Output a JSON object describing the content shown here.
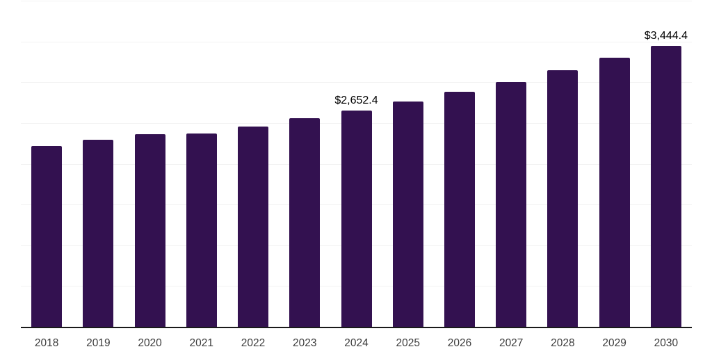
{
  "chart_data": {
    "type": "bar",
    "title": "",
    "xlabel": "",
    "ylabel": "",
    "categories": [
      "2018",
      "2019",
      "2020",
      "2021",
      "2022",
      "2023",
      "2024",
      "2025",
      "2026",
      "2027",
      "2028",
      "2029",
      "2030"
    ],
    "values": [
      2214,
      2292,
      2366,
      2374,
      2458,
      2560,
      2652.4,
      2762,
      2882,
      3005,
      3150,
      3297,
      3444.4
    ],
    "data_labels": [
      null,
      null,
      null,
      null,
      null,
      null,
      "$2,652.4",
      null,
      null,
      null,
      null,
      null,
      "$3,444.4"
    ],
    "ylim": [
      0,
      4000
    ],
    "gridline_step": 500,
    "grid": true,
    "legend": false,
    "y_tick_labels_visible": false,
    "colors": {
      "bar": "#331150",
      "axis_line": "#1a1a1a",
      "gridline": "#f2f2f2",
      "tick_label": "#3d3d3d",
      "data_label": "#000000",
      "background": "#ffffff"
    }
  }
}
